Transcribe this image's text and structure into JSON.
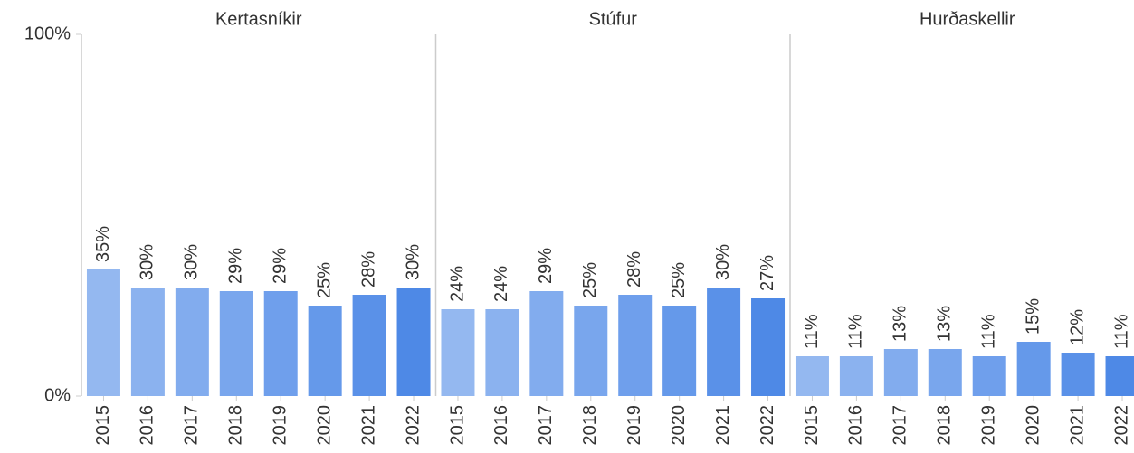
{
  "chart_data": [
    {
      "type": "bar",
      "title": "Kertasníkir",
      "categories": [
        "2015",
        "2016",
        "2017",
        "2018",
        "2019",
        "2020",
        "2021",
        "2022"
      ],
      "values": [
        35,
        30,
        30,
        29,
        29,
        25,
        28,
        30
      ],
      "value_labels": [
        "35%",
        "30%",
        "30%",
        "29%",
        "29%",
        "25%",
        "28%",
        "30%"
      ],
      "colors": [
        "#94b8f0",
        "#8bb2ef",
        "#82acee",
        "#79a6ed",
        "#6f9fec",
        "#6599ea",
        "#5a91e8",
        "#4e89e6"
      ],
      "ylim": [
        0,
        100
      ],
      "yticks": [
        {
          "value": 0,
          "label": "0%"
        },
        {
          "value": 100,
          "label": "100%"
        }
      ]
    },
    {
      "type": "bar",
      "title": "Stúfur",
      "categories": [
        "2015",
        "2016",
        "2017",
        "2018",
        "2019",
        "2020",
        "2021",
        "2022"
      ],
      "values": [
        24,
        24,
        29,
        25,
        28,
        25,
        30,
        27
      ],
      "value_labels": [
        "24%",
        "24%",
        "29%",
        "25%",
        "28%",
        "25%",
        "30%",
        "27%"
      ],
      "colors": [
        "#94b8f0",
        "#8bb2ef",
        "#82acee",
        "#79a6ed",
        "#6f9fec",
        "#6599ea",
        "#5a91e8",
        "#4e89e6"
      ],
      "ylim": [
        0,
        100
      ]
    },
    {
      "type": "bar",
      "title": "Hurðaskellir",
      "categories": [
        "2015",
        "2016",
        "2017",
        "2018",
        "2019",
        "2020",
        "2021",
        "2022"
      ],
      "values": [
        11,
        11,
        13,
        13,
        11,
        15,
        12,
        11
      ],
      "value_labels": [
        "11%",
        "11%",
        "13%",
        "13%",
        "11%",
        "15%",
        "12%",
        "11%"
      ],
      "colors": [
        "#94b8f0",
        "#8bb2ef",
        "#82acee",
        "#79a6ed",
        "#6f9fec",
        "#6599ea",
        "#5a91e8",
        "#4e89e6"
      ],
      "ylim": [
        0,
        100
      ]
    }
  ]
}
